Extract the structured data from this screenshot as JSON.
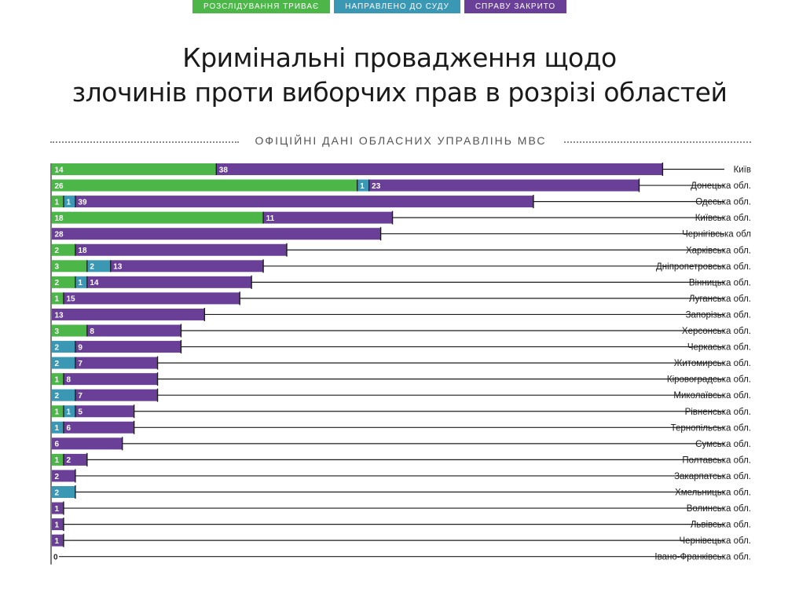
{
  "legend": [
    {
      "label": "РОЗСЛІДУВАННЯ ТРИВАЄ",
      "color": "#4cb648"
    },
    {
      "label": "НАПРАВЛЕНО ДО СУДУ",
      "color": "#3b98b5"
    },
    {
      "label": "СПРАВУ ЗАКРИТО",
      "color": "#6a3f98"
    }
  ],
  "title_line1": "Кримінальні провадження щодо",
  "title_line2": "злочинів проти виборчих прав в розрізі областей",
  "subtitle": "ОФІЦІЙНІ ДАНІ ОБЛАСНИХ УПРАВЛІНЬ МВС",
  "chart_data": {
    "type": "bar",
    "orientation": "horizontal",
    "stacked": true,
    "categories": [
      "Київ",
      "Донецька обл.",
      "Одеська обл.",
      "Київська обл.",
      "Чернігівська обл",
      "Харківська обл.",
      "Дніпропетровська обл.",
      "Вінницька обл.",
      "Луганська обл.",
      "Запорізька обл.",
      "Херсонська обл.",
      "Черкаська обл.",
      "Житомирська обл.",
      "Кіровоградська обл.",
      "Миколаївська обл.",
      "Рівненська обл.",
      "Тернопільська обл.",
      "Сумська обл.",
      "Полтавська обл.",
      "Закарпатська обл.",
      "Хмельницька обл.",
      "Волинська обл.",
      "Львівська обл.",
      "Чернівецька обл.",
      "Івано-Франківська обл."
    ],
    "series": [
      {
        "name": "РОЗСЛІДУВАННЯ ТРИВАЄ",
        "color": "#4cb648",
        "values": [
          14,
          26,
          1,
          18,
          0,
          2,
          3,
          2,
          1,
          0,
          3,
          0,
          0,
          1,
          0,
          1,
          0,
          0,
          1,
          0,
          0,
          0,
          0,
          0,
          0
        ]
      },
      {
        "name": "НАПРАВЛЕНО ДО СУДУ",
        "color": "#3b98b5",
        "values": [
          0,
          1,
          1,
          0,
          0,
          0,
          2,
          1,
          0,
          0,
          0,
          2,
          2,
          0,
          2,
          1,
          1,
          0,
          0,
          0,
          2,
          0,
          0,
          0,
          0
        ]
      },
      {
        "name": "СПРАВУ ЗАКРИТО",
        "color": "#6a3f98",
        "values": [
          38,
          23,
          39,
          11,
          28,
          18,
          13,
          14,
          15,
          13,
          8,
          9,
          7,
          8,
          7,
          5,
          6,
          6,
          2,
          2,
          0,
          1,
          1,
          1,
          0
        ]
      }
    ],
    "zero_label": "0"
  }
}
